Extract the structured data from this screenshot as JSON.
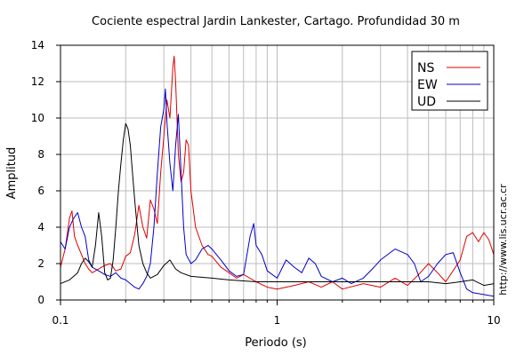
{
  "chart_data": {
    "type": "line",
    "title": "Cociente espectral Jardin Lankester, Cartago. Profundidad 30 m",
    "xlabel": "Periodo (s)",
    "ylabel": "Amplitud",
    "xscale": "log",
    "xlim": [
      0.1,
      10
    ],
    "ylim": [
      0,
      14
    ],
    "grid": true,
    "legend_position": "top-right",
    "x_ticks": [
      {
        "value": 0.1,
        "label": "0.1"
      },
      {
        "value": 1,
        "label": "1"
      },
      {
        "value": 10,
        "label": "10"
      }
    ],
    "y_ticks": [
      {
        "value": 0,
        "label": "0"
      },
      {
        "value": 2,
        "label": "2"
      },
      {
        "value": 4,
        "label": "4"
      },
      {
        "value": 6,
        "label": "6"
      },
      {
        "value": 8,
        "label": "8"
      },
      {
        "value": 10,
        "label": "10"
      },
      {
        "value": 12,
        "label": "12"
      },
      {
        "value": 14,
        "label": "14"
      }
    ],
    "series": [
      {
        "name": "NS",
        "color": "#e00000",
        "x": [
          0.1,
          0.105,
          0.11,
          0.113,
          0.116,
          0.12,
          0.125,
          0.13,
          0.135,
          0.14,
          0.15,
          0.16,
          0.17,
          0.18,
          0.19,
          0.2,
          0.21,
          0.22,
          0.23,
          0.24,
          0.25,
          0.26,
          0.27,
          0.28,
          0.29,
          0.3,
          0.31,
          0.32,
          0.33,
          0.335,
          0.34,
          0.35,
          0.36,
          0.37,
          0.38,
          0.39,
          0.4,
          0.42,
          0.45,
          0.48,
          0.5,
          0.55,
          0.6,
          0.65,
          0.7,
          0.8,
          0.9,
          1.0,
          1.2,
          1.4,
          1.6,
          1.8,
          2.0,
          2.5,
          3.0,
          3.5,
          4.0,
          4.5,
          5.0,
          5.5,
          6.0,
          7.0,
          7.5,
          8.0,
          8.5,
          9.0,
          9.5,
          10.0
        ],
        "values": [
          1.8,
          2.8,
          4.5,
          4.9,
          3.5,
          3.0,
          2.5,
          2.0,
          1.7,
          1.5,
          1.7,
          1.9,
          2.0,
          1.6,
          1.7,
          2.4,
          2.6,
          3.6,
          5.2,
          4.0,
          3.4,
          5.5,
          5.0,
          4.2,
          7.0,
          9.0,
          11.0,
          10.0,
          12.8,
          13.4,
          12.0,
          8.0,
          6.5,
          7.0,
          8.8,
          8.5,
          6.0,
          4.0,
          3.0,
          2.5,
          2.4,
          1.8,
          1.5,
          1.2,
          1.4,
          1.0,
          0.7,
          0.6,
          0.8,
          1.0,
          0.7,
          1.0,
          0.6,
          0.9,
          0.7,
          1.2,
          0.8,
          1.4,
          2.0,
          1.5,
          1.0,
          2.2,
          3.5,
          3.7,
          3.2,
          3.7,
          3.3,
          2.5
        ]
      },
      {
        "name": "EW",
        "color": "#0000c8",
        "x": [
          0.1,
          0.105,
          0.11,
          0.115,
          0.12,
          0.125,
          0.13,
          0.135,
          0.14,
          0.15,
          0.16,
          0.17,
          0.18,
          0.19,
          0.2,
          0.21,
          0.22,
          0.23,
          0.24,
          0.25,
          0.26,
          0.27,
          0.28,
          0.29,
          0.3,
          0.305,
          0.31,
          0.32,
          0.33,
          0.34,
          0.35,
          0.36,
          0.37,
          0.38,
          0.4,
          0.42,
          0.45,
          0.48,
          0.5,
          0.55,
          0.6,
          0.65,
          0.7,
          0.75,
          0.78,
          0.8,
          0.85,
          0.9,
          1.0,
          1.1,
          1.2,
          1.3,
          1.4,
          1.5,
          1.6,
          1.8,
          2.0,
          2.2,
          2.5,
          2.8,
          3.0,
          3.5,
          4.0,
          4.3,
          4.6,
          5.0,
          5.5,
          6.0,
          6.5,
          7.0,
          7.5,
          8.0,
          9.0,
          10.0
        ],
        "values": [
          3.2,
          2.8,
          4.0,
          4.5,
          4.8,
          4.0,
          3.5,
          2.2,
          1.8,
          1.6,
          1.4,
          1.3,
          1.5,
          1.2,
          1.1,
          0.9,
          0.7,
          0.6,
          0.9,
          1.3,
          2.0,
          4.0,
          7.0,
          9.5,
          10.5,
          11.6,
          9.8,
          7.5,
          6.0,
          8.5,
          10.2,
          7.0,
          4.0,
          2.5,
          2.0,
          2.2,
          2.8,
          3.0,
          2.8,
          2.2,
          1.6,
          1.3,
          1.4,
          3.5,
          4.2,
          3.0,
          2.5,
          1.6,
          1.2,
          2.2,
          1.8,
          1.5,
          2.3,
          2.0,
          1.3,
          1.0,
          1.2,
          0.9,
          1.2,
          1.8,
          2.2,
          2.8,
          2.5,
          2.0,
          1.0,
          1.3,
          2.0,
          2.5,
          2.6,
          1.5,
          0.6,
          0.4,
          0.3,
          0.2
        ]
      },
      {
        "name": "UD",
        "color": "#000000",
        "x": [
          0.1,
          0.11,
          0.115,
          0.12,
          0.125,
          0.13,
          0.135,
          0.14,
          0.145,
          0.15,
          0.155,
          0.16,
          0.165,
          0.17,
          0.175,
          0.18,
          0.185,
          0.19,
          0.195,
          0.2,
          0.205,
          0.21,
          0.215,
          0.22,
          0.23,
          0.24,
          0.25,
          0.26,
          0.28,
          0.3,
          0.32,
          0.34,
          0.36,
          0.4,
          0.5,
          0.6,
          0.8,
          1.0,
          1.5,
          2.0,
          3.0,
          4.0,
          5.0,
          6.0,
          7.0,
          8.0,
          9.0,
          10.0
        ],
        "values": [
          0.9,
          1.1,
          1.3,
          1.5,
          2.0,
          2.3,
          2.1,
          1.8,
          3.0,
          4.8,
          3.5,
          1.5,
          1.1,
          1.2,
          2.2,
          4.0,
          6.0,
          7.5,
          8.8,
          9.7,
          9.4,
          8.5,
          7.0,
          5.5,
          3.0,
          2.0,
          1.5,
          1.2,
          1.4,
          1.9,
          2.2,
          1.7,
          1.5,
          1.3,
          1.2,
          1.1,
          1.0,
          1.0,
          1.0,
          1.0,
          1.0,
          1.0,
          1.0,
          0.9,
          1.0,
          1.1,
          0.8,
          0.9
        ]
      }
    ]
  },
  "side_note": "http://www.lis.ucr.ac.cr"
}
